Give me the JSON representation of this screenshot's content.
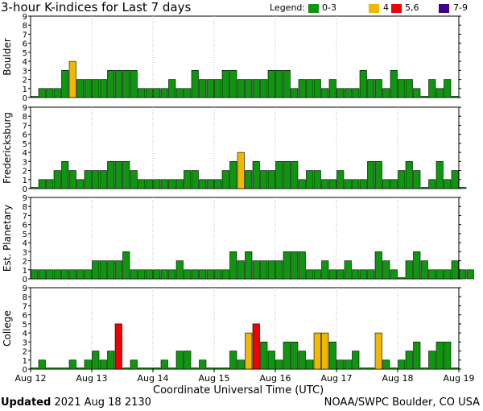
{
  "header": {
    "title": "3-hour K-indices for Last 7 days",
    "legend_label": "Legend:",
    "legend": [
      {
        "label": "0-3",
        "color": "#0f960f"
      },
      {
        "label": "4",
        "color": "#f0b800"
      },
      {
        "label": "5,6",
        "color": "#f00000"
      },
      {
        "label": "7-9",
        "color": "#400090"
      }
    ]
  },
  "footer": {
    "updated_label": "Updated",
    "updated_value": "2021 Aug 18 2130",
    "source": "NOAA/SWPC Boulder, CO USA"
  },
  "chart_data": {
    "type": "bar",
    "xlabel": "Coordinate Universal Time (UTC)",
    "x_tick_labels": [
      "Aug 12",
      "Aug 13",
      "Aug 14",
      "Aug 15",
      "Aug 16",
      "Aug 17",
      "Aug 18",
      "Aug 19"
    ],
    "ylim": [
      0,
      9
    ],
    "y_ticks": [
      0,
      1,
      2,
      3,
      4,
      5,
      6,
      7,
      8,
      9
    ],
    "color_scale": {
      "0-3": "#0f960f",
      "4": "#f0b800",
      "5-6": "#f00000",
      "7-9": "#400090"
    },
    "panels": [
      {
        "name": "Boulder",
        "values": [
          0,
          1,
          1,
          1,
          3,
          4,
          2,
          2,
          2,
          2,
          3,
          3,
          3,
          3,
          1,
          1,
          1,
          1,
          2,
          1,
          1,
          3,
          2,
          2,
          2,
          3,
          3,
          2,
          2,
          2,
          2,
          3,
          3,
          3,
          1,
          2,
          2,
          2,
          1,
          2,
          1,
          1,
          1,
          3,
          2,
          2,
          1,
          3,
          2,
          2,
          1,
          0,
          2,
          1,
          2,
          0
        ]
      },
      {
        "name": "Fredericksburg",
        "values": [
          0,
          1,
          1,
          2,
          3,
          2,
          1,
          2,
          2,
          2,
          3,
          3,
          3,
          2,
          1,
          1,
          1,
          1,
          1,
          1,
          2,
          2,
          1,
          1,
          1,
          2,
          3,
          4,
          2,
          3,
          2,
          2,
          3,
          3,
          3,
          1,
          2,
          2,
          1,
          1,
          2,
          1,
          1,
          1,
          3,
          3,
          1,
          1,
          2,
          3,
          2,
          0,
          1,
          3,
          1,
          2,
          0
        ]
      },
      {
        "name": "Est. Planetary",
        "values": [
          1,
          1,
          1,
          1,
          1,
          1,
          1,
          1,
          2,
          2,
          2,
          2,
          3,
          1,
          1,
          1,
          1,
          1,
          1,
          2,
          1,
          1,
          1,
          1,
          1,
          1,
          3,
          2,
          3,
          2,
          2,
          2,
          2,
          3,
          3,
          3,
          1,
          1,
          2,
          1,
          1,
          2,
          1,
          1,
          1,
          3,
          2,
          1,
          0,
          2,
          3,
          2,
          1,
          1,
          1,
          2,
          1,
          1
        ]
      },
      {
        "name": "College",
        "values": [
          0,
          1,
          0,
          0,
          0,
          1,
          0,
          1,
          2,
          1,
          2,
          5,
          0,
          1,
          0,
          0,
          0,
          1,
          0,
          2,
          2,
          0,
          1,
          0,
          0,
          0,
          2,
          1,
          4,
          5,
          3,
          2,
          1,
          3,
          3,
          2,
          1,
          4,
          4,
          3,
          1,
          1,
          2,
          0,
          0,
          4,
          1,
          0,
          1,
          2,
          3,
          0,
          2,
          3,
          3,
          0
        ]
      }
    ]
  }
}
